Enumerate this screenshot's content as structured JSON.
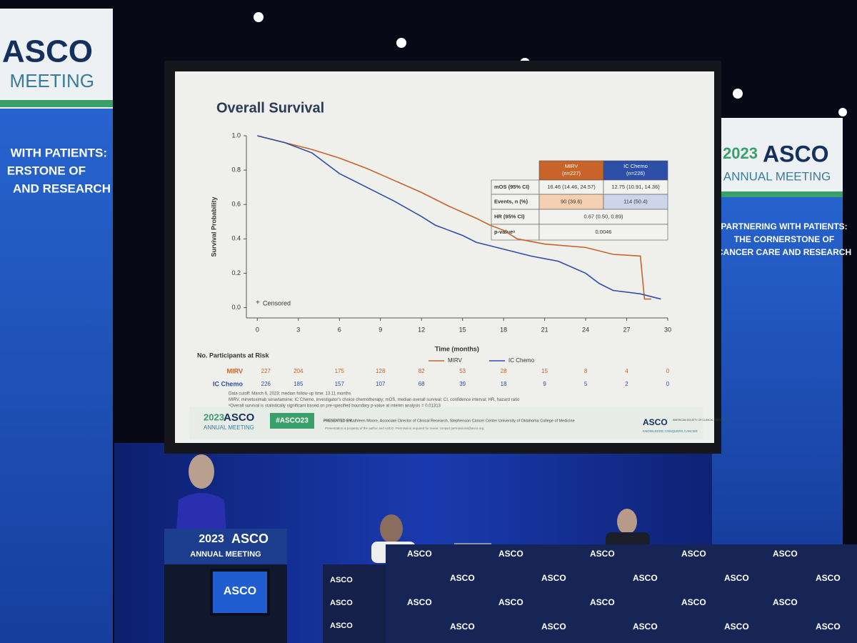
{
  "left_banner": {
    "logo": "ASCO",
    "subtitle": "MEETING",
    "lines": [
      "WITH PATIENTS:",
      "ERSTONE OF",
      "AND RESEARCH"
    ]
  },
  "right_banner": {
    "year": "2023",
    "logo": "ASCO",
    "subtitle": "ANNUAL MEETING",
    "lines": [
      "PARTNERING WITH PATIENTS:",
      "THE CORNERSTONE OF",
      "CANCER CARE AND RESEARCH"
    ]
  },
  "chart_data": {
    "type": "line",
    "title": "Overall Survival",
    "x_label": "Time (months)",
    "y_label": "Survival Probability",
    "annotation": "Censored",
    "legend": "bottom-right",
    "xlim": [
      -0.8,
      30
    ],
    "ylim": [
      -0.06,
      1.0
    ],
    "xticks": [
      0,
      3,
      6,
      9,
      12,
      15,
      18,
      21,
      24,
      27,
      30
    ],
    "yticks": [
      {
        "value": 0,
        "label": "0.0"
      },
      0.2,
      0.4,
      0.6,
      0.8,
      {
        "value": 1,
        "label": "1.0"
      }
    ],
    "series": [
      {
        "name": "MIRV",
        "color": "#c8642a",
        "x": [
          0,
          2,
          4,
          6,
          8,
          10,
          12,
          14,
          16,
          17,
          18,
          19,
          21,
          24,
          26,
          28,
          28.3,
          28.8
        ],
        "values": [
          1.0,
          0.96,
          0.92,
          0.87,
          0.81,
          0.74,
          0.67,
          0.59,
          0.52,
          0.48,
          0.45,
          0.4,
          0.37,
          0.35,
          0.31,
          0.3,
          0.05,
          0.05
        ]
      },
      {
        "name": "IC Chemo",
        "color": "#2d4fa8",
        "x": [
          0,
          2,
          4,
          5,
          6,
          8,
          10,
          12,
          13,
          14,
          15,
          16,
          18,
          20,
          22,
          24,
          25,
          26,
          28,
          29.5
        ],
        "values": [
          1.0,
          0.96,
          0.9,
          0.84,
          0.78,
          0.7,
          0.62,
          0.53,
          0.48,
          0.45,
          0.42,
          0.38,
          0.34,
          0.3,
          0.27,
          0.2,
          0.14,
          0.1,
          0.08,
          0.05
        ]
      }
    ]
  },
  "stats_table": {
    "header": [
      [
        "MIRV",
        "(n=227)"
      ],
      [
        "IC Chemo",
        "(n=226)"
      ]
    ],
    "rows": [
      [
        "mOS (95% CI)",
        "16.46 (14.46, 24.57)",
        "12.75 (10.91, 14.36)"
      ],
      [
        "Events, n (%)",
        "90 (39.6)",
        "114 (50.4)"
      ],
      [
        "HR (95% CI)",
        "0.67 (0.50, 0.89)"
      ],
      [
        "p-valueᵃ",
        "0.0046"
      ]
    ]
  },
  "at_risk": {
    "title": "No. Participants at Risk",
    "rows": [
      [
        227,
        204,
        175,
        128,
        82,
        53,
        28,
        15,
        8,
        4,
        0
      ],
      [
        226,
        185,
        157,
        107,
        68,
        39,
        18,
        9,
        5,
        2,
        0
      ]
    ]
  },
  "footnotes": [
    "Data cutoff: March 6, 2023; median follow-up time: 13.11 months",
    "MIRV, mirvetuximab soravtansine; IC Chemo, investigator's choice chemotherapy; mOS, median overall survival; CI, confidence interval; HR, hazard ratio",
    "ᵃOverall survival is statistically significant based on pre-specified boundary p-value at interim analysis = 0.01313"
  ],
  "slide_footer": {
    "year": "2023",
    "logo": "ASCO",
    "meeting": "ANNUAL MEETING",
    "hashtag": "#ASCO23",
    "presented_label": "PRESENTED BY:",
    "presenter": "Kathleen Moore, Associate Director of Clinical Research, Stephenson Cancer Center University of Oklahoma College of Medicine",
    "notice": "Presentation is property of the author and ASCO. Permission required for reuse; contact permissions@asco.org.",
    "society_logo": "ASCO",
    "society_name": "AMERICAN SOCIETY OF CLINICAL ONCOLOGY",
    "tagline": "KNOWLEDGE CONQUERS CANCER"
  },
  "podium": {
    "year": "2023",
    "logo": "ASCO",
    "subtitle": "ANNUAL MEETING",
    "screen_logo": "ASCO"
  },
  "desk_logo": "ASCO"
}
